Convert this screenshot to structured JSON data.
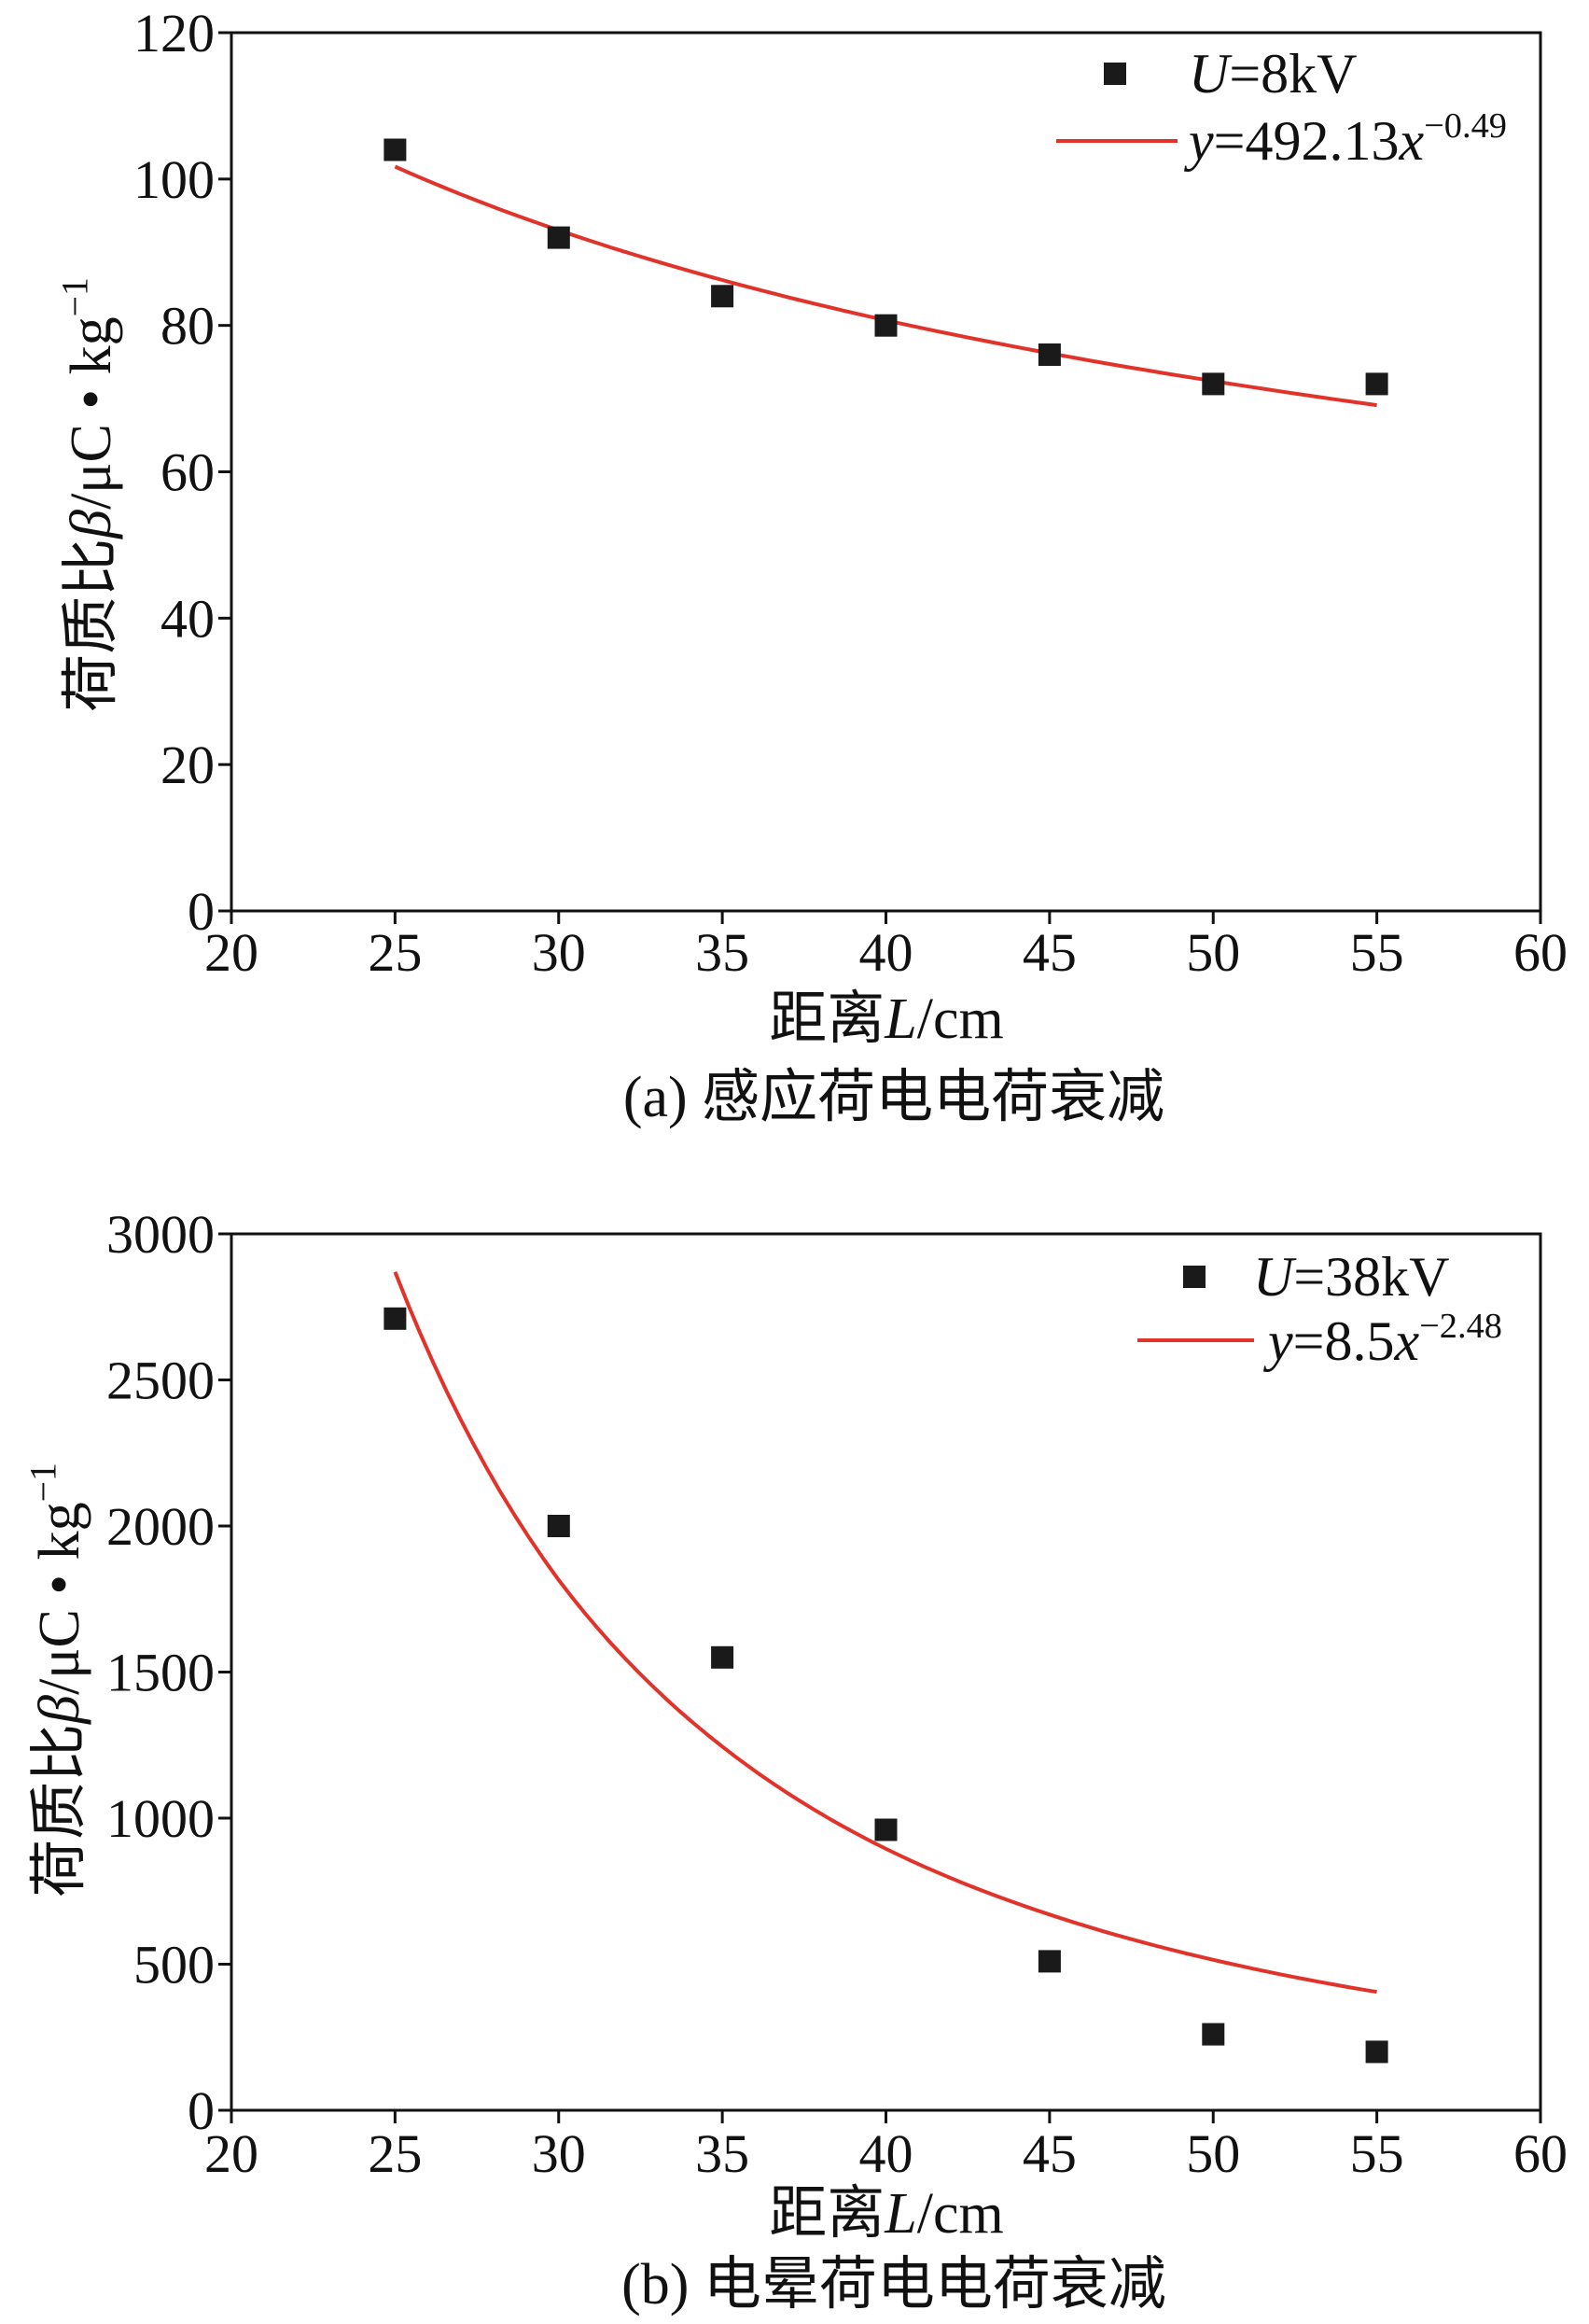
{
  "chart_data": [
    {
      "type": "scatter",
      "caption": "(a) 感应荷电电荷衰减",
      "xlabel_parts": [
        {
          "t": "距离"
        },
        {
          "t": "L",
          "italic": true
        },
        {
          "t": "/cm"
        }
      ],
      "ylabel_parts": [
        {
          "t": "荷质比"
        },
        {
          "t": "β",
          "italic": true
        },
        {
          "t": "/μC • kg"
        },
        {
          "t": "−1",
          "sup": true
        }
      ],
      "xlim": [
        20,
        60
      ],
      "ylim": [
        0,
        120
      ],
      "x_ticks": [
        20,
        25,
        30,
        35,
        40,
        45,
        50,
        55,
        60
      ],
      "y_ticks": [
        0,
        20,
        40,
        60,
        80,
        100,
        120
      ],
      "grid": false,
      "legend": "top-right",
      "series": [
        {
          "type": "scatter",
          "name_parts": [
            {
              "t": "U",
              "italic": true
            },
            {
              "t": "=8kV"
            }
          ],
          "color": "#1a1a1a",
          "x": [
            25,
            30,
            35,
            40,
            45,
            50,
            55
          ],
          "y": [
            104,
            92,
            84,
            80,
            76,
            72,
            72
          ]
        },
        {
          "type": "line",
          "name_parts": [
            {
              "t": "y",
              "italic": true
            },
            {
              "t": "=492.13"
            },
            {
              "t": "x",
              "italic": true
            },
            {
              "t": "−0.49",
              "sup": true
            }
          ],
          "color": "#e2332b",
          "x": [
            25,
            30,
            35,
            40,
            45,
            50,
            55
          ],
          "y": [
            101.7,
            93.0,
            86.2,
            80.7,
            76.2,
            72.4,
            69.1
          ]
        }
      ]
    },
    {
      "type": "scatter",
      "caption": "(b) 电晕荷电电荷衰减",
      "xlabel_parts": [
        {
          "t": "距离"
        },
        {
          "t": "L",
          "italic": true
        },
        {
          "t": "/cm"
        }
      ],
      "ylabel_parts": [
        {
          "t": "荷质比"
        },
        {
          "t": "β",
          "italic": true
        },
        {
          "t": "/μC • kg"
        },
        {
          "t": "−1",
          "sup": true
        }
      ],
      "xlim": [
        20,
        60
      ],
      "ylim": [
        0,
        3000
      ],
      "x_ticks": [
        20,
        25,
        30,
        35,
        40,
        45,
        50,
        55,
        60
      ],
      "y_ticks": [
        0,
        500,
        1000,
        1500,
        2000,
        2500,
        3000
      ],
      "grid": false,
      "legend": "top-right",
      "series": [
        {
          "type": "scatter",
          "name_parts": [
            {
              "t": "U",
              "italic": true
            },
            {
              "t": "=38kV"
            }
          ],
          "color": "#1a1a1a",
          "x": [
            25,
            30,
            35,
            40,
            45,
            50,
            55
          ],
          "y": [
            2710,
            2000,
            1550,
            960,
            510,
            260,
            200
          ]
        },
        {
          "type": "line",
          "name_parts": [
            {
              "t": "y",
              "italic": true
            },
            {
              "t": "=8.5"
            },
            {
              "t": "x",
              "italic": true
            },
            {
              "t": "−2.48",
              "sup": true
            }
          ],
          "color": "#e2332b",
          "x": [
            25,
            30,
            35,
            40,
            45,
            50,
            55
          ],
          "y": [
            2870,
            1815,
            1245,
            895,
            670,
            515,
            405
          ]
        }
      ]
    }
  ]
}
